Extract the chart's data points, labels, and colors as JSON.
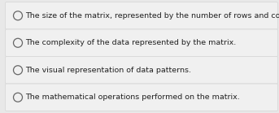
{
  "options": [
    "The size of the matrix, represented by the number of rows and columns.",
    "The complexity of the data represented by the matrix.",
    "The visual representation of data patterns.",
    "The mathematical operations performed on the matrix."
  ],
  "background_color": "#e8e8e8",
  "box_color": "#f0f0f0",
  "box_edge_color": "#d8d8d8",
  "circle_color": "#f0f0f0",
  "circle_edge_color": "#666666",
  "text_color": "#222222",
  "font_size": 6.8,
  "fig_width": 3.43,
  "fig_height": 1.39
}
